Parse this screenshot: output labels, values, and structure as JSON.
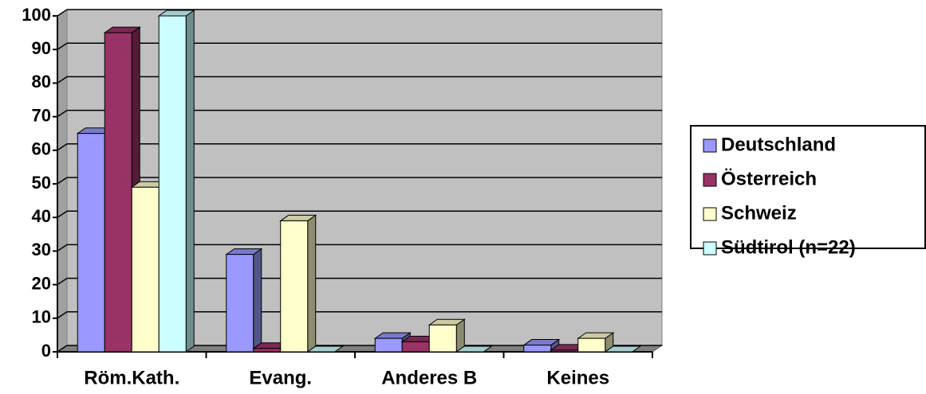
{
  "chart_data": {
    "type": "bar3d",
    "categories": [
      "Röm.Kath.",
      "Evang.",
      "Anderes B",
      "Keines"
    ],
    "series": [
      {
        "name": "Deutschland",
        "color": "#9999ff",
        "values": [
          65,
          29,
          4,
          2
        ]
      },
      {
        "name": "Österreich",
        "color": "#993366",
        "values": [
          95,
          1,
          3,
          0.5
        ]
      },
      {
        "name": "Schweiz",
        "color": "#ffffcc",
        "values": [
          49,
          39,
          8,
          4
        ]
      },
      {
        "name": "Südtirol (n=22)",
        "color": "#ccffff",
        "values": [
          100,
          0,
          0,
          0
        ]
      }
    ],
    "ylim": [
      0,
      100
    ],
    "yticks": [
      0,
      10,
      20,
      30,
      40,
      50,
      60,
      70,
      80,
      90,
      100
    ],
    "grid": true,
    "legend": "right"
  }
}
